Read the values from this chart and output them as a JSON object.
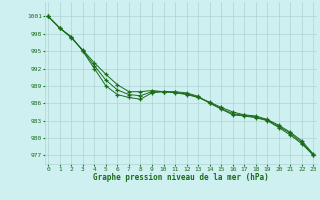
{
  "xlabel": "Graphe pression niveau de la mer (hPa)",
  "bg_color": "#cff0f0",
  "grid_color": "#aed4d4",
  "line_color": "#1a6b1a",
  "x_ticks": [
    0,
    1,
    2,
    3,
    4,
    5,
    6,
    7,
    8,
    9,
    10,
    11,
    12,
    13,
    14,
    15,
    16,
    17,
    18,
    19,
    20,
    21,
    22,
    23
  ],
  "y_ticks": [
    977,
    980,
    983,
    986,
    989,
    992,
    995,
    998,
    1001
  ],
  "ylim": [
    975.5,
    1003.5
  ],
  "xlim": [
    -0.3,
    23.3
  ],
  "line_straight": [
    1001,
    999.0,
    997.3,
    995.2,
    993.0,
    991.0,
    989.2,
    988.0,
    988.0,
    988.2,
    988.0,
    987.8,
    987.5,
    987.0,
    986.2,
    985.3,
    984.5,
    984.0,
    983.8,
    983.2,
    982.2,
    981.0,
    979.5,
    977.2
  ],
  "line_dip": [
    1001,
    999.0,
    997.5,
    995.0,
    992.0,
    989.0,
    987.5,
    987.0,
    986.7,
    987.8,
    988.0,
    988.0,
    987.8,
    987.2,
    986.0,
    985.0,
    984.0,
    983.8,
    983.5,
    983.0,
    981.8,
    980.5,
    979.0,
    977.0
  ],
  "line_mid": [
    1001,
    999.0,
    997.4,
    995.1,
    992.5,
    990.0,
    988.3,
    987.5,
    987.3,
    988.0,
    988.0,
    987.9,
    987.6,
    987.1,
    986.1,
    985.1,
    984.2,
    983.9,
    983.6,
    983.1,
    982.0,
    980.8,
    979.2,
    977.1
  ]
}
